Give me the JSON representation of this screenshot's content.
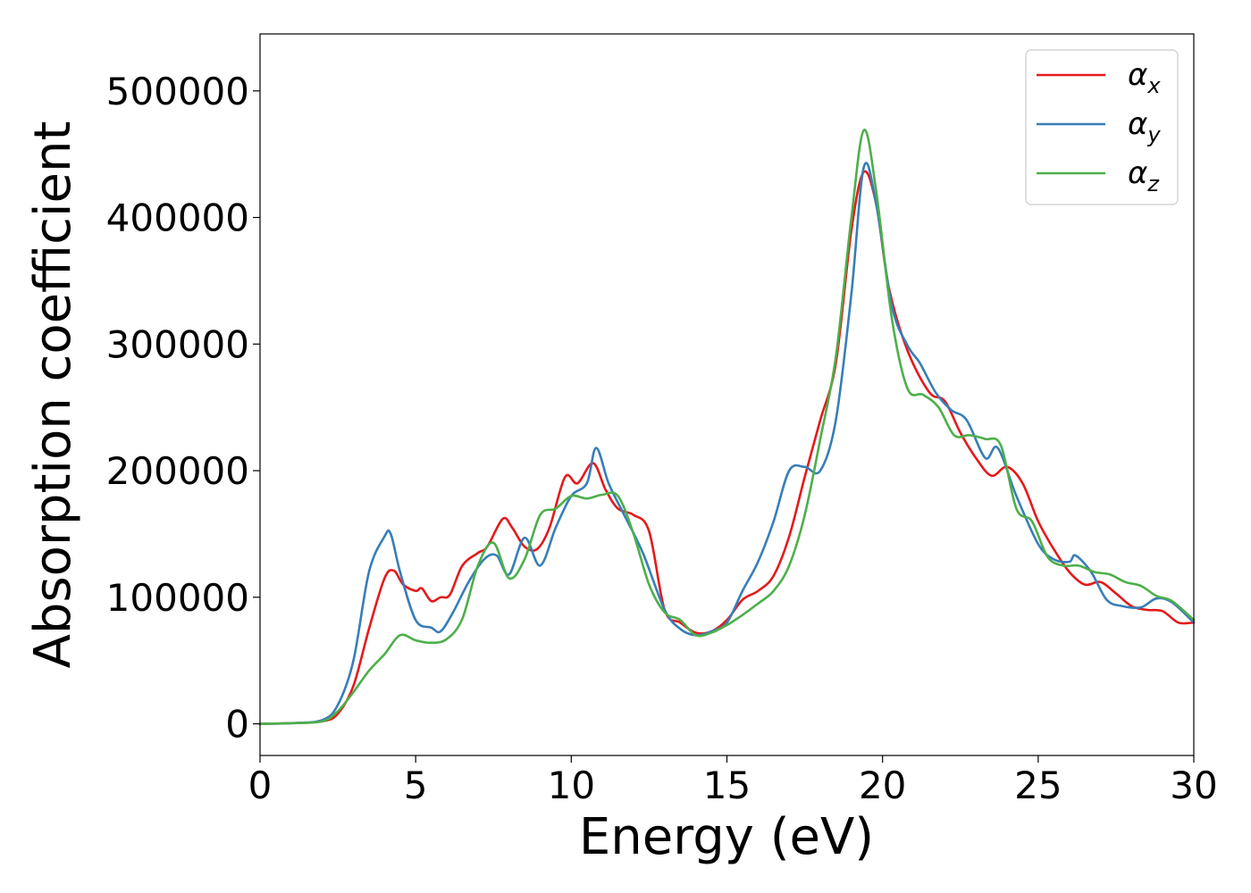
{
  "chart_data": {
    "type": "line",
    "xlabel": "Energy (eV)",
    "ylabel": "Absorption coefficient",
    "xlim": [
      0,
      30
    ],
    "ylim": [
      -25000,
      545000
    ],
    "xticks": [
      0,
      5,
      10,
      15,
      20,
      25,
      30
    ],
    "xtick_labels": [
      "0",
      "5",
      "10",
      "15",
      "20",
      "25",
      "30"
    ],
    "yticks": [
      0,
      100000,
      200000,
      300000,
      400000,
      500000
    ],
    "ytick_labels": [
      "0",
      "100000",
      "200000",
      "300000",
      "400000",
      "500000"
    ],
    "grid": false,
    "legend_position": "top-right",
    "series": [
      {
        "name": "αx",
        "symbol": "α",
        "subscript": "x",
        "color": "#e41a1c",
        "x": [
          0,
          1,
          2,
          2.5,
          3,
          3.5,
          4,
          4.3,
          4.6,
          5,
          5.2,
          5.5,
          5.8,
          6.1,
          6.5,
          7,
          7.3,
          7.8,
          8.1,
          8.5,
          8.9,
          9.3,
          9.8,
          10.2,
          10.7,
          11.1,
          11.5,
          12,
          12.5,
          13,
          13.5,
          14,
          14.5,
          15,
          15.5,
          16,
          16.5,
          17,
          17.5,
          18,
          18.5,
          19,
          19.4,
          19.8,
          20.2,
          20.8,
          21.5,
          22,
          22.5,
          23,
          23.5,
          24,
          24.5,
          25,
          25.5,
          26,
          26.5,
          27,
          27.5,
          28,
          28.5,
          29,
          29.5,
          30
        ],
        "y": [
          0,
          500,
          2000,
          8000,
          30000,
          75000,
          115000,
          121000,
          110000,
          105000,
          107000,
          97000,
          100000,
          102000,
          125000,
          135000,
          140000,
          162000,
          155000,
          140000,
          138000,
          155000,
          195000,
          190000,
          206000,
          185000,
          170000,
          165000,
          152000,
          90000,
          80000,
          72000,
          73000,
          82000,
          98000,
          105000,
          117000,
          148000,
          195000,
          240000,
          285000,
          390000,
          436000,
          410000,
          345000,
          295000,
          262000,
          255000,
          230000,
          210000,
          196000,
          203000,
          190000,
          160000,
          138000,
          120000,
          110000,
          112000,
          103000,
          93000,
          90000,
          89000,
          80000,
          80000
        ]
      },
      {
        "name": "αy",
        "symbol": "α",
        "subscript": "y",
        "color": "#377eb8",
        "x": [
          0,
          1,
          2,
          2.5,
          3,
          3.5,
          4,
          4.2,
          4.5,
          5,
          5.5,
          5.8,
          6.2,
          6.7,
          7.2,
          7.6,
          8,
          8.5,
          9,
          9.5,
          10,
          10.5,
          10.8,
          11.2,
          11.7,
          12.3,
          13,
          13.5,
          14,
          14.5,
          15,
          15.5,
          16,
          16.5,
          17,
          17.5,
          18,
          18.5,
          19,
          19.4,
          19.8,
          20.3,
          20.8,
          21.2,
          21.7,
          22.2,
          22.7,
          23.3,
          23.7,
          24.3,
          25,
          25.5,
          26,
          26.2,
          26.7,
          27.2,
          27.7,
          28.3,
          28.8,
          29.3,
          30
        ],
        "y": [
          0,
          500,
          3000,
          15000,
          50000,
          120000,
          148000,
          150000,
          120000,
          82000,
          76000,
          73000,
          88000,
          112000,
          130000,
          133000,
          118000,
          147000,
          125000,
          155000,
          180000,
          190000,
          218000,
          190000,
          165000,
          135000,
          90000,
          75000,
          70000,
          73000,
          80000,
          105000,
          128000,
          160000,
          200000,
          203000,
          200000,
          240000,
          340000,
          440000,
          410000,
          330000,
          299000,
          285000,
          262000,
          248000,
          240000,
          210000,
          218000,
          180000,
          142000,
          130000,
          128000,
          133000,
          120000,
          98000,
          93000,
          92000,
          99000,
          96000,
          80000
        ]
      },
      {
        "name": "αz",
        "symbol": "α",
        "subscript": "z",
        "color": "#4daf4a",
        "x": [
          0,
          1,
          2,
          2.5,
          3,
          3.5,
          4,
          4.5,
          5,
          5.5,
          6,
          6.5,
          7,
          7.5,
          8,
          8.5,
          9,
          9.5,
          10,
          10.5,
          11,
          11.5,
          12,
          12.5,
          13,
          13.5,
          14,
          14.5,
          15,
          15.5,
          16,
          16.5,
          17,
          17.5,
          18,
          18.5,
          19,
          19.4,
          19.8,
          20.3,
          20.8,
          21.3,
          21.8,
          22.3,
          22.8,
          23.3,
          23.8,
          24.3,
          24.8,
          25.3,
          25.8,
          26.3,
          26.8,
          27.3,
          27.8,
          28.3,
          28.8,
          29.3,
          30
        ],
        "y": [
          0,
          500,
          2000,
          10000,
          25000,
          42000,
          55000,
          70000,
          66000,
          64000,
          67000,
          83000,
          125000,
          143000,
          115000,
          130000,
          165000,
          170000,
          180000,
          178000,
          181000,
          180000,
          150000,
          110000,
          88000,
          82000,
          70000,
          72000,
          78000,
          86000,
          95000,
          105000,
          125000,
          165000,
          225000,
          290000,
          400000,
          469000,
          420000,
          320000,
          265000,
          260000,
          250000,
          228000,
          228000,
          225000,
          220000,
          170000,
          160000,
          132000,
          125000,
          125000,
          120000,
          118000,
          112000,
          109000,
          101000,
          97000,
          82000
        ]
      }
    ]
  }
}
